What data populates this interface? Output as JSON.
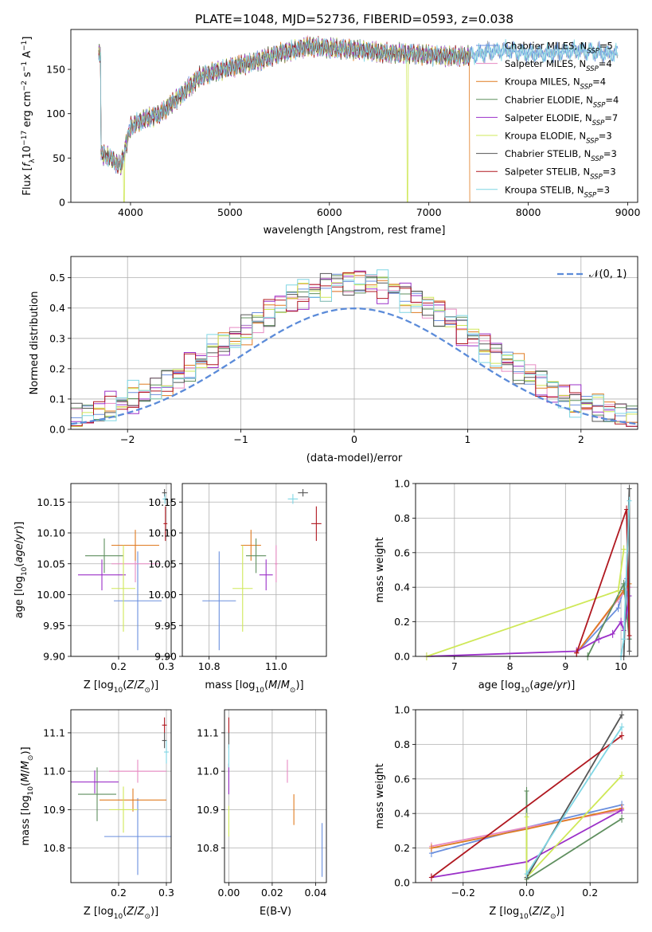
{
  "figure": {
    "title": "PLATE=1048, MJD=52736, FIBERID=0593, z=0.038"
  },
  "colors": {
    "Chabrier MILES": "#6a8fde",
    "Salpeter MILES": "#e78ac3",
    "Kroupa MILES": "#e07b20",
    "Chabrier ELODIE": "#5f8f5f",
    "Salpeter ELODIE": "#9b30c8",
    "Kroupa ELODIE": "#cfe858",
    "Chabrier STELIB": "#555555",
    "Salpeter STELIB": "#b01820",
    "Kroupa STELIB": "#7fd6e4",
    "normal": "#5b8bd9"
  },
  "chart_data": [
    {
      "type": "line",
      "panel": "spectrum",
      "title": "PLATE=1048, MJD=52736, FIBERID=0593, z=0.038",
      "xlabel": "wavelength [Angstrom, rest frame]",
      "ylabel_pre": "Flux [",
      "ylabel_f": "f",
      "ylabel_lambda": "λ",
      "ylabel_10": "10",
      "ylabel_exp1": "−17",
      "ylabel_mid": " erg cm",
      "ylabel_exp2": "−2",
      "ylabel_s": " s",
      "ylabel_exp3": "−1",
      "ylabel_A": " A",
      "ylabel_exp4": "−1",
      "ylabel_post": "]",
      "xlim": [
        3400,
        9100
      ],
      "ylim": [
        0,
        195
      ],
      "xticks": [
        4000,
        5000,
        6000,
        7000,
        8000,
        9000
      ],
      "yticks": [
        0,
        50,
        100,
        150
      ],
      "legend_position": "top-right",
      "legend": [
        {
          "label": "Chabrier MILES, N",
          "sub": "SSP",
          "value": "=5"
        },
        {
          "label": "Salpeter MILES, N",
          "sub": "SSP",
          "value": "=4"
        },
        {
          "label": "Kroupa MILES, N",
          "sub": "SSP",
          "value": "=4"
        },
        {
          "label": "Chabrier ELODIE, N",
          "sub": "SSP",
          "value": "=4"
        },
        {
          "label": "Salpeter ELODIE, N",
          "sub": "SSP",
          "value": "=7"
        },
        {
          "label": "Kroupa ELODIE, N",
          "sub": "SSP",
          "value": "=3"
        },
        {
          "label": "Chabrier STELIB, N",
          "sub": "SSP",
          "value": "=3"
        },
        {
          "label": "Salpeter STELIB, N",
          "sub": "SSP",
          "value": "=3"
        },
        {
          "label": "Kroupa STELIB, N",
          "sub": "SSP",
          "value": "=3"
        }
      ],
      "continuum": {
        "x": [
          3700,
          3800,
          3900,
          4000,
          4100,
          4300,
          4500,
          4700,
          5000,
          5300,
          5500,
          5800,
          6000,
          6300,
          6600,
          6800,
          7000,
          7200,
          7400,
          7600,
          7800,
          8000,
          8200,
          8500,
          8800
        ],
        "y": [
          55,
          50,
          40,
          85,
          92,
          100,
          120,
          142,
          152,
          160,
          168,
          176,
          174,
          172,
          168,
          168,
          166,
          165,
          165,
          170,
          172,
          168,
          168,
          172,
          168
        ]
      },
      "dropouts": [
        {
          "series": "Kroupa ELODIE",
          "start": 3930,
          "end": 3940
        },
        {
          "series": "Kroupa ELODIE",
          "start": 6780,
          "end": 6790
        },
        {
          "series": "Kroupa MILES",
          "start": 7410,
          "end": 7420
        }
      ],
      "extended_series": [
        "Chabrier MILES",
        "Kroupa STELIB"
      ],
      "spectrum_end": 7420,
      "extended_end": 8900
    },
    {
      "type": "line",
      "panel": "residuals",
      "xlabel": "(data-model)/error",
      "ylabel": "Normed distribution",
      "xlim": [
        -2.5,
        2.5
      ],
      "ylim": [
        0,
        0.57
      ],
      "xticks": [
        -2,
        -1,
        0,
        1,
        2
      ],
      "yticks": [
        0.0,
        0.1,
        0.2,
        0.3,
        0.4,
        0.5
      ],
      "gaussian_label": "𝒩(0, 1)",
      "legend_position": "top-right",
      "bin_width": 0.1,
      "bin_start": -2.5,
      "series": [
        {
          "name": "Chabrier MILES",
          "offset": 0.0
        },
        {
          "name": "Salpeter MILES",
          "offset": 0.012
        },
        {
          "name": "Kroupa MILES",
          "offset": 0.025
        },
        {
          "name": "Chabrier ELODIE",
          "offset": -0.015
        },
        {
          "name": "Salpeter ELODIE",
          "offset": 0.03
        },
        {
          "name": "Kroupa ELODIE",
          "offset": -0.01
        },
        {
          "name": "Chabrier STELIB",
          "offset": 0.02
        },
        {
          "name": "Salpeter STELIB",
          "offset": -0.02
        },
        {
          "name": "Kroupa STELIB",
          "offset": 0.035
        }
      ]
    },
    {
      "type": "scatter",
      "panel": "Z-age",
      "xlabel": "Z [log10(Z/Z☉)]",
      "ylabel": "age [log10(age/yr)]",
      "xlim": [
        0.1,
        0.31
      ],
      "ylim": [
        9.9,
        10.18
      ],
      "xticks": [
        0.2,
        0.3
      ],
      "yticks": [
        9.9,
        9.95,
        10.0,
        10.05,
        10.1,
        10.15
      ],
      "points": [
        {
          "series": "Chabrier MILES",
          "x": 0.24,
          "y": 9.99,
          "xerr": 0.05,
          "yerr": 0.08
        },
        {
          "series": "Salpeter MILES",
          "x": 0.235,
          "y": 10.05,
          "xerr": 0.05,
          "yerr": 0.03
        },
        {
          "series": "Kroupa MILES",
          "x": 0.235,
          "y": 10.08,
          "xerr": 0.05,
          "yerr": 0.025
        },
        {
          "series": "Chabrier ELODIE",
          "x": 0.17,
          "y": 10.063,
          "xerr": 0.04,
          "yerr": 0.028
        },
        {
          "series": "Salpeter ELODIE",
          "x": 0.165,
          "y": 10.032,
          "xerr": 0.05,
          "yerr": 0.025
        },
        {
          "series": "Kroupa ELODIE",
          "x": 0.21,
          "y": 10.01,
          "xerr": 0.025,
          "yerr": 0.07
        },
        {
          "series": "Chabrier STELIB",
          "x": 0.296,
          "y": 10.165,
          "xerr": 0.005,
          "yerr": 0.006
        },
        {
          "series": "Salpeter STELIB",
          "x": 0.298,
          "y": 10.115,
          "xerr": 0.004,
          "yerr": 0.028
        },
        {
          "series": "Kroupa STELIB",
          "x": 0.297,
          "y": 10.155,
          "xerr": 0.005,
          "yerr": 0.008
        }
      ]
    },
    {
      "type": "scatter",
      "panel": "mass-age",
      "xlabel": "mass [log10(M/M☉)]",
      "ylabel": "",
      "xlim": [
        10.72,
        11.15
      ],
      "ylim": [
        9.9,
        10.18
      ],
      "xticks": [
        10.8,
        11.0
      ],
      "yticks": [
        9.9,
        9.95,
        10.0,
        10.05,
        10.1,
        10.15
      ],
      "points": [
        {
          "series": "Chabrier MILES",
          "x": 10.83,
          "y": 9.99,
          "xerr": 0.05,
          "yerr": 0.08
        },
        {
          "series": "Salpeter MILES",
          "x": 11.0,
          "y": 10.05,
          "xerr": 0.004,
          "yerr": 0.03
        },
        {
          "series": "Kroupa MILES",
          "x": 10.925,
          "y": 10.08,
          "xerr": 0.03,
          "yerr": 0.025
        },
        {
          "series": "Chabrier ELODIE",
          "x": 10.94,
          "y": 10.063,
          "xerr": 0.03,
          "yerr": 0.028
        },
        {
          "series": "Salpeter ELODIE",
          "x": 10.97,
          "y": 10.032,
          "xerr": 0.02,
          "yerr": 0.025
        },
        {
          "series": "Kroupa ELODIE",
          "x": 10.9,
          "y": 10.01,
          "xerr": 0.03,
          "yerr": 0.07
        },
        {
          "series": "Chabrier STELIB",
          "x": 11.08,
          "y": 10.165,
          "xerr": 0.015,
          "yerr": 0.006
        },
        {
          "series": "Salpeter STELIB",
          "x": 11.12,
          "y": 10.115,
          "xerr": 0.015,
          "yerr": 0.028
        },
        {
          "series": "Kroupa STELIB",
          "x": 11.05,
          "y": 10.155,
          "xerr": 0.015,
          "yerr": 0.008
        }
      ]
    },
    {
      "type": "line",
      "panel": "age-weight",
      "xlabel": "age [log10(age/yr)]",
      "ylabel": "mass weight",
      "xlim": [
        6.3,
        10.3
      ],
      "ylim": [
        0.0,
        1.0
      ],
      "xticks": [
        7,
        8,
        9,
        10
      ],
      "yticks": [
        0.0,
        0.2,
        0.4,
        0.6,
        0.8,
        1.0
      ],
      "series": [
        {
          "name": "Chabrier MILES",
          "x": [
            9.2,
            9.95,
            10.1,
            10.15
          ],
          "y": [
            0.02,
            0.28,
            0.45,
            0.1
          ]
        },
        {
          "name": "Salpeter MILES",
          "x": [
            9.2,
            9.95,
            10.15
          ],
          "y": [
            0.02,
            0.33,
            0.4
          ]
        },
        {
          "name": "Kroupa MILES",
          "x": [
            9.2,
            10.05,
            10.15
          ],
          "y": [
            0.02,
            0.38,
            0.42
          ]
        },
        {
          "name": "Chabrier ELODIE",
          "x": [
            9.4,
            10.05,
            10.15
          ],
          "y": [
            0.0,
            0.42,
            0.1
          ]
        },
        {
          "name": "Salpeter ELODIE",
          "x": [
            6.5,
            9.2,
            9.6,
            9.85,
            10.0,
            10.05,
            10.15
          ],
          "y": [
            0.0,
            0.03,
            0.1,
            0.13,
            0.2,
            0.15,
            0.35
          ]
        },
        {
          "name": "Kroupa ELODIE",
          "x": [
            6.5,
            9.95,
            10.05
          ],
          "y": [
            0.0,
            0.38,
            0.62
          ]
        },
        {
          "name": "Chabrier STELIB",
          "x": [
            10.05,
            10.15,
            10.15
          ],
          "y": [
            0.0,
            0.97,
            0.03
          ]
        },
        {
          "name": "Salpeter STELIB",
          "x": [
            9.2,
            10.1,
            10.15
          ],
          "y": [
            0.02,
            0.85,
            0.12
          ]
        },
        {
          "name": "Kroupa STELIB",
          "x": [
            10.0,
            10.05,
            10.15
          ],
          "y": [
            0.0,
            0.1,
            0.9
          ]
        }
      ]
    },
    {
      "type": "scatter",
      "panel": "Z-mass",
      "xlabel": "Z [log10(Z/Z☉)]",
      "ylabel": "mass [log10(M/M☉)]",
      "xlim": [
        0.1,
        0.31
      ],
      "ylim": [
        10.71,
        11.16
      ],
      "xticks": [
        0.2,
        0.3
      ],
      "yticks": [
        10.8,
        10.9,
        11.0,
        11.1
      ],
      "points": [
        {
          "series": "Chabrier MILES",
          "x": 0.24,
          "y": 10.83,
          "xerr": 0.07,
          "yerr": 0.1
        },
        {
          "series": "Salpeter MILES",
          "x": 0.24,
          "y": 11.0,
          "xerr": 0.06,
          "yerr": 0.03
        },
        {
          "series": "Kroupa MILES",
          "x": 0.23,
          "y": 10.925,
          "xerr": 0.07,
          "yerr": 0.03
        },
        {
          "series": "Chabrier ELODIE",
          "x": 0.155,
          "y": 10.94,
          "xerr": 0.04,
          "yerr": 0.07
        },
        {
          "series": "Salpeter ELODIE",
          "x": 0.15,
          "y": 10.972,
          "xerr": 0.05,
          "yerr": 0.03
        },
        {
          "series": "Kroupa ELODIE",
          "x": 0.21,
          "y": 10.9,
          "xerr": 0.03,
          "yerr": 0.06
        },
        {
          "series": "Chabrier STELIB",
          "x": 0.296,
          "y": 11.08,
          "xerr": 0.005,
          "yerr": 0.02
        },
        {
          "series": "Salpeter STELIB",
          "x": 0.296,
          "y": 11.12,
          "xerr": 0.005,
          "yerr": 0.02
        },
        {
          "series": "Kroupa STELIB",
          "x": 0.3,
          "y": 11.05,
          "xerr": 0.005,
          "yerr": 0.03
        }
      ]
    },
    {
      "type": "scatter",
      "panel": "EBV-mass",
      "xlabel": "E(B-V)",
      "ylabel": "",
      "xlim": [
        -0.002,
        0.045
      ],
      "ylim": [
        10.71,
        11.16
      ],
      "xticks": [
        0.0,
        0.02,
        0.04
      ],
      "yticks": [
        10.8,
        10.9,
        11.0,
        11.1
      ],
      "points": [
        {
          "series": "Chabrier MILES",
          "x": 0.043,
          "y": 10.795,
          "yerr": 0.07
        },
        {
          "series": "Salpeter MILES",
          "x": 0.027,
          "y": 11.0,
          "yerr": 0.03
        },
        {
          "series": "Kroupa MILES",
          "x": 0.03,
          "y": 10.9,
          "yerr": 0.04
        },
        {
          "series": "Chabrier ELODIE",
          "x": 0.0,
          "y": 10.98,
          "yerr": 0.04
        },
        {
          "series": "Salpeter ELODIE",
          "x": 0.0,
          "y": 10.98,
          "yerr": 0.04
        },
        {
          "series": "Kroupa ELODIE",
          "x": 0.0,
          "y": 10.87,
          "yerr": 0.04
        },
        {
          "series": "Chabrier STELIB",
          "x": 0.0,
          "y": 11.08,
          "yerr": 0.02
        },
        {
          "series": "Salpeter STELIB",
          "x": 0.0,
          "y": 11.12,
          "yerr": 0.02
        },
        {
          "series": "Kroupa STELIB",
          "x": 0.0,
          "y": 11.04,
          "yerr": 0.03
        }
      ]
    },
    {
      "type": "line",
      "panel": "Z-weight",
      "xlabel": "Z [log10(Z/Z☉)]",
      "ylabel": "mass weight",
      "xlim": [
        -0.35,
        0.35
      ],
      "ylim": [
        0.0,
        1.0
      ],
      "xticks": [
        -0.2,
        0.0,
        0.2
      ],
      "xtick_labels": [
        "−0.2",
        "0.0",
        "0.2"
      ],
      "yticks": [
        0.0,
        0.2,
        0.4,
        0.6,
        0.8,
        1.0
      ],
      "series": [
        {
          "name": "Chabrier MILES",
          "x": [
            -0.3,
            0.0,
            0.3
          ],
          "y": [
            0.17,
            0.32,
            0.45
          ]
        },
        {
          "name": "Salpeter MILES",
          "x": [
            -0.3,
            0.0,
            0.3
          ],
          "y": [
            0.21,
            0.32,
            0.42
          ]
        },
        {
          "name": "Kroupa MILES",
          "x": [
            -0.3,
            0.0,
            0.3
          ],
          "y": [
            0.2,
            0.31,
            0.43
          ]
        },
        {
          "name": "Chabrier ELODIE",
          "x": [
            0.0,
            0.0,
            0.3
          ],
          "y": [
            0.53,
            0.02,
            0.37
          ]
        },
        {
          "name": "Salpeter ELODIE",
          "x": [
            -0.3,
            0.0,
            0.3
          ],
          "y": [
            0.03,
            0.12,
            0.42
          ]
        },
        {
          "name": "Kroupa ELODIE",
          "x": [
            0.0,
            0.0,
            0.3
          ],
          "y": [
            0.38,
            0.03,
            0.62
          ]
        },
        {
          "name": "Chabrier STELIB",
          "x": [
            0.0,
            0.3
          ],
          "y": [
            0.03,
            0.97
          ]
        },
        {
          "name": "Salpeter STELIB",
          "x": [
            -0.3,
            0.3
          ],
          "y": [
            0.03,
            0.85
          ]
        },
        {
          "name": "Kroupa STELIB",
          "x": [
            0.0,
            0.3
          ],
          "y": [
            0.05,
            0.9
          ]
        }
      ]
    }
  ]
}
